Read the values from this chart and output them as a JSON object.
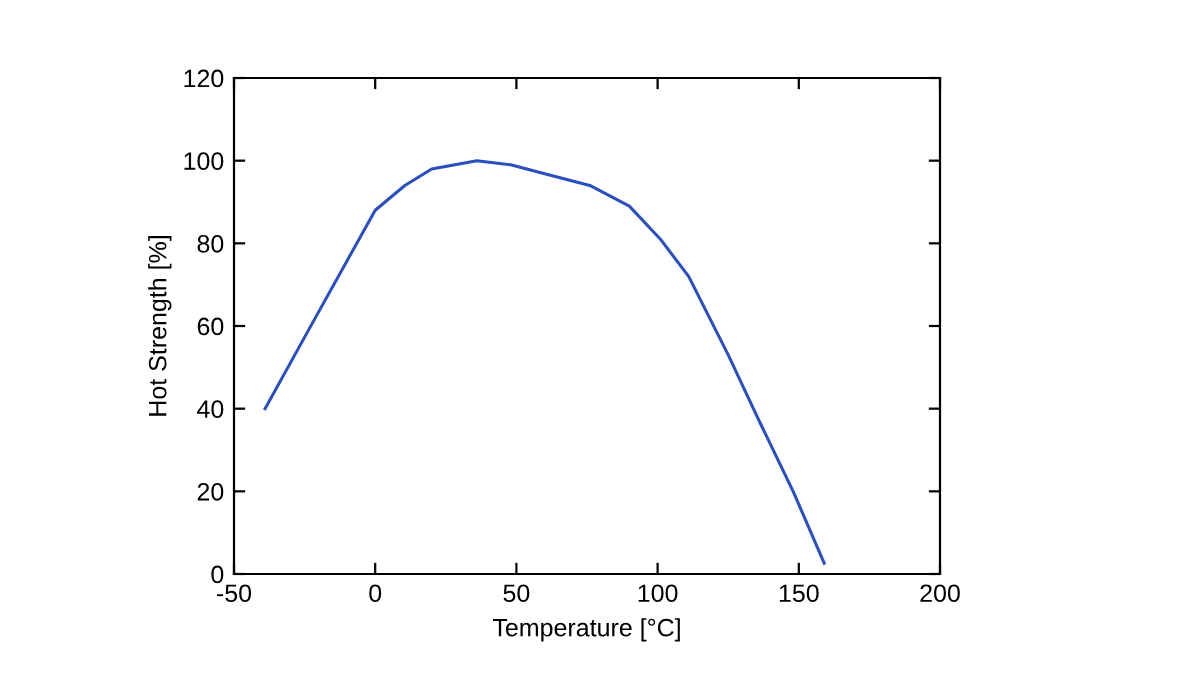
{
  "chart_data": {
    "type": "line",
    "xlabel": "Temperature [°C]",
    "ylabel": "Hot Strength [%]",
    "x": [
      -39,
      -22,
      0,
      10.5,
      20,
      36,
      48,
      59,
      76,
      90,
      101,
      111,
      125,
      136,
      148,
      159
    ],
    "series": [
      {
        "color": "#2a4fc0",
        "values": [
          40,
          61,
          88,
          94,
          98,
          100,
          99,
          97,
          94,
          89,
          81,
          72,
          53,
          37,
          20,
          2.6
        ]
      }
    ],
    "xlim": [
      -50,
      200
    ],
    "xticks": [
      -50,
      0,
      50,
      100,
      150,
      200
    ],
    "ylim": [
      0,
      120
    ],
    "yticks": [
      0,
      20,
      40,
      60,
      80,
      100,
      120
    ],
    "grid": false,
    "legend": false,
    "marker": "none",
    "line_style": "solid"
  }
}
